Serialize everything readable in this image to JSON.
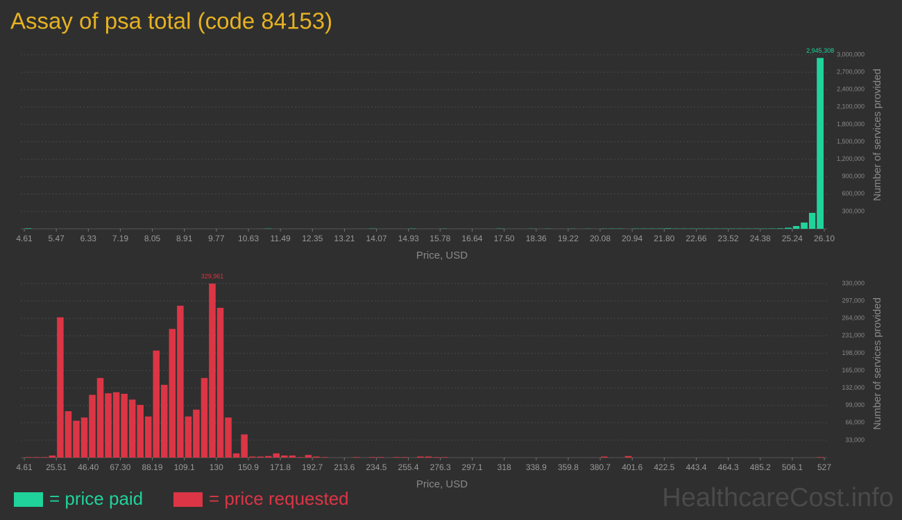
{
  "title": "Assay of psa total (code 84153)",
  "watermark": "HealthcareCost.info",
  "chart_data": [
    {
      "type": "histogram",
      "x_label": "Price, USD",
      "y_label": "Number of services provided",
      "bins": [
        4.61,
        4.82,
        5.04,
        5.25,
        5.47,
        5.68,
        5.9,
        6.11,
        6.33,
        6.54,
        6.76,
        6.97,
        7.19,
        7.4,
        7.62,
        7.83,
        8.05,
        8.26,
        8.48,
        8.69,
        8.91,
        9.12,
        9.34,
        9.55,
        9.77,
        9.98,
        10.2,
        10.41,
        10.63,
        10.84,
        11.06,
        11.27,
        11.49,
        11.7,
        11.92,
        12.13,
        12.35,
        12.56,
        12.78,
        12.99,
        13.21,
        13.42,
        13.64,
        13.85,
        14.07,
        14.28,
        14.5,
        14.71,
        14.93,
        15.14,
        15.36,
        15.57,
        15.78,
        15.99,
        16.21,
        16.42,
        16.64,
        16.85,
        17.07,
        17.28,
        17.5,
        17.71,
        17.93,
        18.14,
        18.36,
        18.57,
        18.79,
        19,
        19.22,
        19.43,
        19.65,
        19.86,
        20.08,
        20.29,
        20.51,
        20.72,
        20.94,
        21.15,
        21.37,
        21.58,
        21.8,
        22.01,
        22.23,
        22.44,
        22.66,
        22.87,
        23.09,
        23.3,
        23.52,
        23.73,
        23.95,
        24.16,
        24.38,
        24.59,
        24.81,
        25.02,
        25.24,
        25.45,
        25.67,
        25.88,
        26.1
      ],
      "series": [
        {
          "name": "= price paid",
          "color": "#20d39b",
          "values": [
            8000,
            0,
            0,
            0,
            0,
            0,
            0,
            0,
            0,
            0,
            0,
            0,
            0,
            0,
            0,
            0,
            0,
            0,
            0,
            0,
            0,
            0,
            0,
            0,
            0,
            0,
            0,
            0,
            0,
            0,
            5000,
            0,
            0,
            0,
            0,
            0,
            0,
            0,
            0,
            0,
            0,
            0,
            0,
            5000,
            0,
            0,
            0,
            0,
            5000,
            0,
            0,
            0,
            4000,
            0,
            0,
            0,
            0,
            0,
            0,
            5000,
            0,
            0,
            0,
            3000,
            0,
            3000,
            0,
            0,
            3000,
            0,
            3000,
            0,
            4000,
            4000,
            4000,
            0,
            5000,
            5000,
            5000,
            5000,
            8000,
            5000,
            5000,
            5000,
            5000,
            5000,
            5000,
            5000,
            5000,
            5000,
            5000,
            5000,
            5000,
            6000,
            8000,
            18000,
            48000,
            108000,
            275000,
            2945308
          ],
          "value_labels": [
            null,
            null,
            null,
            null,
            null,
            null,
            null,
            null,
            null,
            null,
            null,
            null,
            null,
            null,
            null,
            null,
            null,
            null,
            null,
            null,
            null,
            null,
            null,
            null,
            null,
            null,
            null,
            null,
            null,
            null,
            null,
            null,
            null,
            null,
            null,
            null,
            null,
            null,
            null,
            null,
            null,
            null,
            null,
            null,
            null,
            null,
            null,
            null,
            null,
            null,
            null,
            null,
            null,
            null,
            null,
            null,
            null,
            null,
            null,
            null,
            null,
            null,
            null,
            null,
            null,
            null,
            null,
            null,
            null,
            null,
            null,
            null,
            null,
            null,
            null,
            null,
            null,
            null,
            null,
            null,
            null,
            null,
            null,
            null,
            null,
            null,
            null,
            null,
            null,
            null,
            null,
            null,
            null,
            null,
            null,
            null,
            null,
            null,
            null,
            "2,945,308"
          ]
        }
      ],
      "xlim": [
        4.61,
        26.1
      ],
      "xticks": [
        4.61,
        5.47,
        6.33,
        7.19,
        8.05,
        8.91,
        9.77,
        10.63,
        11.49,
        12.35,
        13.21,
        14.07,
        14.93,
        {
          "value": 15.78,
          "label": "15.78"
        },
        16.64,
        {
          "value": 17.5,
          "label": "17.50"
        },
        18.36,
        19.22,
        20.08,
        20.94,
        {
          "value": 21.8,
          "label": "21.80"
        },
        22.66,
        23.52,
        24.38,
        25.24,
        {
          "value": 26.1,
          "label": "26.10"
        }
      ],
      "ylim": [
        0,
        3000000
      ],
      "yticks": [
        {
          "value": 300000,
          "label": "300,000"
        },
        {
          "value": 600000,
          "label": "600,000"
        },
        {
          "value": 900000,
          "label": "900,000"
        },
        {
          "value": 1200000,
          "label": "1,200,000"
        },
        {
          "value": 1500000,
          "label": "1,500,000"
        },
        {
          "value": 1800000,
          "label": "1,800,000"
        },
        {
          "value": 2100000,
          "label": "2,100,000"
        },
        {
          "value": 2400000,
          "label": "2,400,000"
        },
        {
          "value": 2700000,
          "label": "2,700,000"
        },
        {
          "value": 3000000,
          "label": "3,000,000"
        }
      ],
      "grid": true
    },
    {
      "type": "histogram",
      "x_label": "Price, USD",
      "y_label": "Number of services provided",
      "bins": [
        4.61,
        9.83,
        15.06,
        20.28,
        25.51,
        30.73,
        35.96,
        41.18,
        46.4,
        51.62,
        56.85,
        62.07,
        67.3,
        72.52,
        77.75,
        82.97,
        88.19,
        93.41,
        98.64,
        103.86,
        109.1,
        114.32,
        119.55,
        124.77,
        130,
        135.22,
        140.45,
        145.67,
        150.9,
        156.12,
        161.35,
        166.57,
        171.8,
        177.02,
        182.25,
        187.47,
        192.7,
        197.92,
        203.15,
        208.37,
        213.6,
        218.82,
        224.05,
        229.27,
        234.5,
        239.72,
        244.95,
        250.17,
        255.4,
        260.62,
        265.85,
        271.07,
        276.3,
        281.52,
        286.75,
        291.97,
        297.1,
        302.32,
        307.55,
        312.77,
        318,
        323.22,
        328.45,
        333.67,
        338.9,
        344.12,
        349.35,
        354.57,
        359.8,
        365.02,
        370.25,
        375.47,
        380.7,
        385.92,
        391.15,
        396.37,
        401.6,
        406.82,
        412.05,
        417.27,
        422.5,
        427.72,
        432.95,
        438.17,
        443.4,
        448.62,
        453.85,
        459.07,
        464.3,
        469.52,
        474.75,
        479.97,
        485.2,
        490.42,
        495.65,
        500.87,
        506.1,
        511.32,
        516.55,
        521.77,
        527
      ],
      "series": [
        {
          "name": "= price requested",
          "color": "#dc3545",
          "values": [
            1000,
            1000,
            1000,
            4000,
            266000,
            88000,
            70000,
            76000,
            119000,
            151000,
            122000,
            124000,
            121000,
            110000,
            100000,
            78000,
            203000,
            138000,
            244000,
            288000,
            78000,
            91000,
            151000,
            329961,
            284000,
            76000,
            8000,
            44000,
            2000,
            2000,
            3000,
            8000,
            4000,
            4000,
            1000,
            5000,
            2000,
            1000,
            0,
            0,
            0,
            1000,
            0,
            1000,
            1000,
            0,
            1000,
            1000,
            0,
            2000,
            2000,
            1000,
            1000,
            0,
            0,
            0,
            0,
            0,
            0,
            0,
            0,
            0,
            0,
            0,
            0,
            0,
            0,
            0,
            0,
            0,
            0,
            0,
            2000,
            0,
            0,
            3000,
            0,
            0,
            0,
            0,
            0,
            0,
            0,
            0,
            0,
            0,
            0,
            0,
            0,
            0,
            0,
            0,
            0,
            0,
            0,
            0,
            0,
            0,
            0,
            1000
          ],
          "value_labels": [
            null,
            null,
            null,
            null,
            null,
            null,
            null,
            null,
            null,
            null,
            null,
            null,
            null,
            null,
            null,
            null,
            null,
            null,
            null,
            null,
            null,
            null,
            null,
            "329,961",
            null,
            null,
            null,
            null,
            null,
            null,
            null,
            null,
            null,
            null,
            null,
            null,
            null,
            null,
            null,
            null,
            null,
            null,
            null,
            null,
            null,
            null,
            null,
            null,
            null,
            null,
            null,
            null,
            null,
            null,
            null,
            null,
            null,
            null,
            null,
            null,
            null,
            null,
            null,
            null,
            null,
            null,
            null,
            null,
            null,
            null,
            null,
            null,
            null,
            null,
            null,
            null,
            null,
            null,
            null,
            null,
            null,
            null,
            null,
            null,
            null,
            null,
            null,
            null,
            null,
            null,
            null,
            null,
            null,
            null,
            null,
            null,
            null,
            null,
            null,
            null
          ]
        }
      ],
      "xlim": [
        4.61,
        527
      ],
      "xticks": [
        4.61,
        25.51,
        {
          "value": 46.4,
          "label": "46.40"
        },
        {
          "value": 67.3,
          "label": "67.30"
        },
        88.19,
        109.1,
        130,
        150.9,
        171.8,
        192.7,
        213.6,
        234.5,
        255.4,
        276.3,
        297.1,
        318,
        338.9,
        359.8,
        380.7,
        401.6,
        422.5,
        443.4,
        464.3,
        485.2,
        506.1,
        527
      ],
      "ylim": [
        0,
        330000
      ],
      "yticks": [
        {
          "value": 33000,
          "label": "33,000"
        },
        {
          "value": 66000,
          "label": "66,000"
        },
        {
          "value": 99000,
          "label": "99,000"
        },
        {
          "value": 132000,
          "label": "132,000"
        },
        {
          "value": 165000,
          "label": "165,000"
        },
        {
          "value": 198000,
          "label": "198,000"
        },
        {
          "value": 231000,
          "label": "231,000"
        },
        {
          "value": 264000,
          "label": "264,000"
        },
        {
          "value": 297000,
          "label": "297,000"
        },
        {
          "value": 330000,
          "label": "330,000"
        }
      ],
      "grid": true
    }
  ]
}
